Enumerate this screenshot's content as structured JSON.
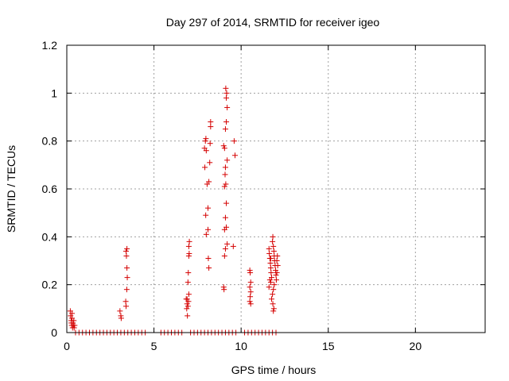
{
  "chart_data": {
    "type": "scatter",
    "title": "Day 297 of 2014, SRMTID for receiver igeo",
    "xlabel": "GPS time / hours",
    "ylabel": "SRMTID / TECUs",
    "xlim": [
      0,
      24
    ],
    "ylim": [
      0,
      1.2
    ],
    "xticks": [
      0,
      5,
      10,
      15,
      20
    ],
    "yticks": [
      0,
      0.2,
      0.4,
      0.6,
      0.8,
      1,
      1.2
    ],
    "xtick_labels": [
      "0",
      "5",
      "10",
      "15",
      "20"
    ],
    "ytick_labels": [
      "0",
      "0.2",
      "0.4",
      "0.6",
      "0.8",
      "1",
      "1.2"
    ],
    "grid": true,
    "marker": "+",
    "color": "#d40000",
    "series": [
      {
        "name": "SRMTID",
        "points": [
          [
            0.2,
            0.09
          ],
          [
            0.22,
            0.07
          ],
          [
            0.25,
            0.05
          ],
          [
            0.28,
            0.03
          ],
          [
            0.3,
            0.06
          ],
          [
            0.33,
            0.02
          ],
          [
            0.35,
            0.04
          ],
          [
            0.38,
            0.03
          ],
          [
            0.4,
            0.05
          ],
          [
            0.42,
            0.02
          ],
          [
            0.45,
            0.03
          ],
          [
            0.3,
            0.08
          ],
          [
            0.26,
            0.04
          ],
          [
            3.05,
            0.09
          ],
          [
            3.1,
            0.07
          ],
          [
            3.12,
            0.06
          ],
          [
            3.4,
            0.34
          ],
          [
            3.42,
            0.32
          ],
          [
            3.45,
            0.27
          ],
          [
            3.47,
            0.23
          ],
          [
            3.44,
            0.18
          ],
          [
            3.38,
            0.13
          ],
          [
            3.4,
            0.11
          ],
          [
            3.45,
            0.35
          ],
          [
            6.85,
            0.14
          ],
          [
            6.9,
            0.12
          ],
          [
            6.88,
            0.1
          ],
          [
            6.92,
            0.07
          ],
          [
            6.95,
            0.11
          ],
          [
            6.98,
            0.13
          ],
          [
            7.0,
            0.16
          ],
          [
            6.95,
            0.21
          ],
          [
            6.97,
            0.25
          ],
          [
            7.0,
            0.32
          ],
          [
            7.02,
            0.33
          ],
          [
            7.0,
            0.36
          ],
          [
            7.03,
            0.38
          ],
          [
            6.9,
            0.14
          ],
          [
            7.9,
            0.77
          ],
          [
            7.95,
            0.8
          ],
          [
            7.98,
            0.81
          ],
          [
            8.0,
            0.76
          ],
          [
            7.92,
            0.69
          ],
          [
            8.05,
            0.62
          ],
          [
            7.97,
            0.49
          ],
          [
            8.0,
            0.41
          ],
          [
            8.1,
            0.43
          ],
          [
            8.15,
            0.27
          ],
          [
            8.12,
            0.31
          ],
          [
            8.1,
            0.52
          ],
          [
            8.15,
            0.63
          ],
          [
            8.2,
            0.71
          ],
          [
            8.22,
            0.79
          ],
          [
            8.25,
            0.86
          ],
          [
            8.25,
            0.88
          ],
          [
            9.0,
            0.78
          ],
          [
            9.05,
            0.77
          ],
          [
            9.1,
            0.69
          ],
          [
            9.08,
            0.66
          ],
          [
            9.05,
            0.61
          ],
          [
            9.12,
            0.62
          ],
          [
            9.15,
            0.54
          ],
          [
            9.1,
            0.48
          ],
          [
            9.05,
            0.43
          ],
          [
            9.15,
            0.44
          ],
          [
            9.2,
            0.37
          ],
          [
            9.1,
            0.35
          ],
          [
            9.05,
            0.32
          ],
          [
            9.0,
            0.19
          ],
          [
            9.02,
            0.18
          ],
          [
            9.1,
            0.85
          ],
          [
            9.15,
            0.88
          ],
          [
            9.2,
            0.94
          ],
          [
            9.15,
            0.98
          ],
          [
            9.17,
            1.0
          ],
          [
            9.12,
            1.02
          ],
          [
            9.2,
            0.72
          ],
          [
            9.6,
            0.8
          ],
          [
            9.65,
            0.74
          ],
          [
            9.55,
            0.36
          ],
          [
            10.5,
            0.26
          ],
          [
            10.52,
            0.25
          ],
          [
            10.55,
            0.21
          ],
          [
            10.5,
            0.19
          ],
          [
            10.55,
            0.17
          ],
          [
            10.52,
            0.15
          ],
          [
            10.5,
            0.13
          ],
          [
            10.55,
            0.12
          ],
          [
            11.6,
            0.35
          ],
          [
            11.62,
            0.33
          ],
          [
            11.65,
            0.31
          ],
          [
            11.68,
            0.29
          ],
          [
            11.7,
            0.27
          ],
          [
            11.72,
            0.25
          ],
          [
            11.75,
            0.23
          ],
          [
            11.7,
            0.21
          ],
          [
            11.65,
            0.22
          ],
          [
            11.8,
            0.38
          ],
          [
            11.82,
            0.4
          ],
          [
            11.85,
            0.36
          ],
          [
            11.88,
            0.34
          ],
          [
            11.9,
            0.32
          ],
          [
            11.92,
            0.3
          ],
          [
            11.95,
            0.28
          ],
          [
            11.98,
            0.26
          ],
          [
            12.0,
            0.24
          ],
          [
            12.02,
            0.22
          ],
          [
            11.9,
            0.2
          ],
          [
            11.85,
            0.18
          ],
          [
            11.8,
            0.16
          ],
          [
            11.75,
            0.14
          ],
          [
            11.82,
            0.12
          ],
          [
            11.88,
            0.1
          ],
          [
            11.85,
            0.09
          ],
          [
            12.05,
            0.3
          ],
          [
            12.08,
            0.32
          ],
          [
            12.1,
            0.28
          ],
          [
            12.05,
            0.25
          ],
          [
            11.6,
            0.19
          ],
          [
            11.7,
            0.31
          ],
          [
            0.5,
            0
          ],
          [
            0.7,
            0
          ],
          [
            0.9,
            0
          ],
          [
            1.1,
            0
          ],
          [
            1.3,
            0
          ],
          [
            1.5,
            0
          ],
          [
            1.7,
            0
          ],
          [
            1.9,
            0
          ],
          [
            2.1,
            0
          ],
          [
            2.3,
            0
          ],
          [
            2.5,
            0
          ],
          [
            2.7,
            0
          ],
          [
            2.9,
            0
          ],
          [
            3.1,
            0
          ],
          [
            3.3,
            0
          ],
          [
            3.5,
            0
          ],
          [
            3.7,
            0
          ],
          [
            3.9,
            0
          ],
          [
            4.1,
            0
          ],
          [
            4.3,
            0
          ],
          [
            4.5,
            0
          ],
          [
            5.4,
            0
          ],
          [
            5.6,
            0
          ],
          [
            5.8,
            0
          ],
          [
            6.0,
            0
          ],
          [
            6.2,
            0
          ],
          [
            6.4,
            0
          ],
          [
            6.6,
            0
          ],
          [
            7.1,
            0
          ],
          [
            7.3,
            0
          ],
          [
            7.5,
            0
          ],
          [
            7.7,
            0
          ],
          [
            7.9,
            0
          ],
          [
            8.1,
            0
          ],
          [
            8.3,
            0
          ],
          [
            8.5,
            0
          ],
          [
            8.7,
            0
          ],
          [
            8.9,
            0
          ],
          [
            9.1,
            0
          ],
          [
            9.3,
            0
          ],
          [
            9.5,
            0
          ],
          [
            9.7,
            0
          ],
          [
            10.2,
            0
          ],
          [
            10.4,
            0
          ],
          [
            10.6,
            0
          ],
          [
            10.8,
            0
          ],
          [
            11.0,
            0
          ],
          [
            11.2,
            0
          ],
          [
            11.4,
            0
          ],
          [
            11.6,
            0
          ],
          [
            11.8,
            0
          ],
          [
            12.0,
            0
          ]
        ]
      }
    ]
  }
}
